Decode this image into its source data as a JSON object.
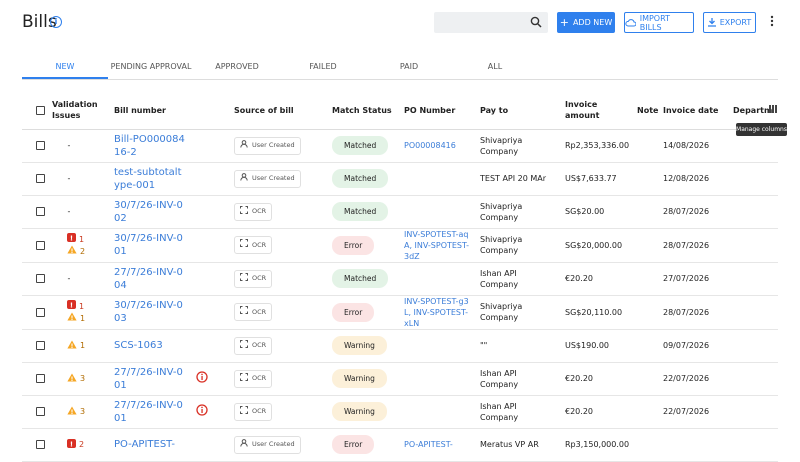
{
  "header": {
    "title": "Bills",
    "buttons": [
      "ADD NEW",
      "IMPORT BILLS",
      "EXPORT"
    ]
  },
  "tabs": [
    "NEW",
    "PENDING APPROVAL",
    "APPROVED",
    "FAILED",
    "PAID",
    "ALL"
  ],
  "tooltip": "Manage columns",
  "table": {
    "columns": [
      "Validation Issues",
      "Bill number",
      "Source of bill",
      "Match Status",
      "PO Number",
      "Pay to",
      "Invoice amount",
      "Note",
      "Invoice date",
      "Departm"
    ],
    "rows": [
      {
        "issues": "-",
        "bill_number": "Bill-PO00008416-2",
        "source": "User Created",
        "match_status": "Matched",
        "po_number": "PO00008416",
        "pay_to": "Shivapriya Company",
        "invoice_amount": "Rp2,353,336.00",
        "invoice_date": "14/08/2026"
      },
      {
        "issues": "-",
        "bill_number": "test-subtotaltype-001",
        "source": "User Created",
        "match_status": "Matched",
        "pay_to": "TEST API 20 MAr",
        "invoice_amount": "US$7,633.77",
        "invoice_date": "12/08/2026"
      },
      {
        "issues": "-",
        "bill_number": "30/7/26-INV-002",
        "source": "OCR",
        "match_status": "Matched",
        "pay_to": "Shivapriya Company",
        "invoice_amount": "SG$20.00",
        "invoice_date": "28/07/2026"
      },
      {
        "errors": 1,
        "warnings": 2,
        "bill_number": "30/7/26-INV-001",
        "source": "OCR",
        "match_status": "Error",
        "po_number": "INV-SPOTEST-aqA, INV-SPOTEST-3dZ",
        "pay_to": "Shivapriya Company",
        "invoice_amount": "SG$20,000.00",
        "invoice_date": "28/07/2026"
      },
      {
        "issues": "-",
        "bill_number": "27/7/26-INV-004",
        "source": "OCR",
        "match_status": "Matched",
        "pay_to": "Ishan API Company",
        "invoice_amount": "€20.20",
        "invoice_date": "27/07/2026"
      },
      {
        "errors": 1,
        "warnings": 1,
        "bill_number": "30/7/26-INV-003",
        "source": "OCR",
        "match_status": "Error",
        "po_number": "INV-SPOTEST-g3L, INV-SPOTEST-xLN",
        "pay_to": "Shivapriya Company",
        "invoice_amount": "SG$20,110.00",
        "invoice_date": "28/07/2026"
      },
      {
        "warnings": 1,
        "bill_number": "SCS-1063",
        "source": "OCR",
        "match_status": "Warning",
        "pay_to": "\"\"",
        "invoice_amount": "US$190.00",
        "invoice_date": "09/07/2026"
      },
      {
        "warnings": 3,
        "bill_number": "27/7/26-INV-001",
        "info_icon": true,
        "source": "OCR",
        "match_status": "Warning",
        "pay_to": "Ishan API Company",
        "invoice_amount": "€20.20",
        "invoice_date": "22/07/2026"
      },
      {
        "warnings": 3,
        "bill_number": "27/7/26-INV-001",
        "info_icon": true,
        "source": "OCR",
        "match_status": "Warning",
        "pay_to": "Ishan API Company",
        "invoice_amount": "€20.20",
        "invoice_date": "22/07/2026"
      },
      {
        "errors": 2,
        "bill_number": "PO-APITEST-",
        "source": "User Created",
        "match_status": "Error",
        "po_number": "PO-APITEST-",
        "pay_to": "Meratus VP AR",
        "invoice_amount": "Rp3,150,000.00"
      }
    ]
  }
}
